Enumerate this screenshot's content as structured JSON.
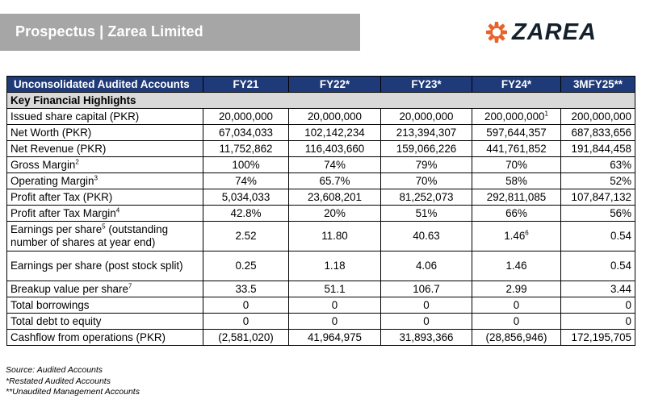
{
  "header": {
    "title": "Prospectus | Zarea Limited"
  },
  "logo": {
    "text": "ZAREA",
    "brand_color": "#e8622c",
    "icon": "zarea-star-icon"
  },
  "colors": {
    "table_header_bg": "#1f3a78",
    "section_bg": "#d9d9d9",
    "banner_bg": "#a6a6a6"
  },
  "table": {
    "columns": [
      "Unconsolidated Audited Accounts",
      "FY21",
      "FY22*",
      "FY23*",
      "FY24*",
      "3MFY25**"
    ],
    "section_title": "Key Financial Highlights",
    "rows": [
      {
        "label": "Issued share capital (PKR)",
        "label_sup": "",
        "values": [
          "20,000,000",
          "20,000,000",
          "20,000,000",
          "200,000,000",
          "200,000,000"
        ],
        "value_sups": [
          "",
          "",
          "",
          "1",
          ""
        ]
      },
      {
        "label": "Net Worth (PKR)",
        "label_sup": "",
        "values": [
          "67,034,033",
          "102,142,234",
          "213,394,307",
          "597,644,357",
          "687,833,656"
        ],
        "value_sups": [
          "",
          "",
          "",
          "",
          ""
        ]
      },
      {
        "label": "Net Revenue (PKR)",
        "label_sup": "",
        "values": [
          "11,752,862",
          "116,403,660",
          "159,066,226",
          "441,761,852",
          "191,844,458"
        ],
        "value_sups": [
          "",
          "",
          "",
          "",
          ""
        ]
      },
      {
        "label": "Gross Margin",
        "label_sup": "2",
        "values": [
          "100%",
          "74%",
          "79%",
          "70%",
          "63%"
        ],
        "value_sups": [
          "",
          "",
          "",
          "",
          ""
        ]
      },
      {
        "label": "Operating Margin",
        "label_sup": "3",
        "values": [
          "74%",
          "65.7%",
          "70%",
          "58%",
          "52%"
        ],
        "value_sups": [
          "",
          "",
          "",
          "",
          ""
        ]
      },
      {
        "label": "Profit after Tax (PKR)",
        "label_sup": "",
        "values": [
          "5,034,033",
          "23,608,201",
          "81,252,073",
          "292,811,085",
          "107,847,132"
        ],
        "value_sups": [
          "",
          "",
          "",
          "",
          ""
        ]
      },
      {
        "label": "Profit after Tax Margin",
        "label_sup": "4",
        "values": [
          "42.8%",
          "20%",
          "51%",
          "66%",
          "56%"
        ],
        "value_sups": [
          "",
          "",
          "",
          "",
          ""
        ]
      },
      {
        "label": "Earnings per share",
        "label_sup": "5",
        "label_rest": " (outstanding number of shares at year end)",
        "values": [
          "2.52",
          "11.80",
          "40.63",
          "1.46",
          "0.54"
        ],
        "value_sups": [
          "",
          "",
          "",
          "6",
          ""
        ]
      },
      {
        "label": "Earnings per share (post stock split)",
        "label_sup": "",
        "values": [
          "0.25",
          "1.18",
          "4.06",
          "1.46",
          "0.54"
        ],
        "value_sups": [
          "",
          "",
          "",
          "",
          ""
        ]
      },
      {
        "label": "Breakup value per share",
        "label_sup": "7",
        "values": [
          "33.5",
          "51.1",
          "106.7",
          "2.99",
          "3.44"
        ],
        "value_sups": [
          "",
          "",
          "",
          "",
          ""
        ]
      },
      {
        "label": "Total borrowings",
        "label_sup": "",
        "values": [
          "0",
          "0",
          "0",
          "0",
          "0"
        ],
        "value_sups": [
          "",
          "",
          "",
          "",
          ""
        ]
      },
      {
        "label": "Total debt to equity",
        "label_sup": "",
        "values": [
          "0",
          "0",
          "0",
          "0",
          "0"
        ],
        "value_sups": [
          "",
          "",
          "",
          "",
          ""
        ]
      },
      {
        "label": "Cashflow from operations (PKR)",
        "label_sup": "",
        "values": [
          "(2,581,020)",
          "41,964,975",
          "31,893,366",
          "(28,856,946)",
          "172,195,705"
        ],
        "value_sups": [
          "",
          "",
          "",
          "",
          ""
        ]
      }
    ]
  },
  "notes": [
    "Source: Audited Accounts",
    "*Restated Audited Accounts",
    "**Unaudited Management Accounts"
  ]
}
